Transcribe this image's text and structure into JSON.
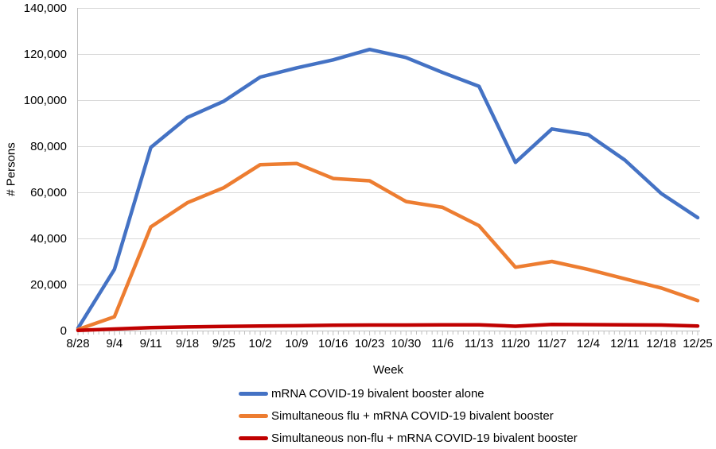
{
  "chart_data": {
    "type": "line",
    "title": "",
    "xlabel": "Week",
    "ylabel": "# Persons",
    "ylim": [
      0,
      140000
    ],
    "yticks": [
      0,
      20000,
      40000,
      60000,
      80000,
      100000,
      120000,
      140000
    ],
    "ytick_labels": [
      "0",
      "20,000",
      "40,000",
      "60,000",
      "80,000",
      "100,000",
      "120,000",
      "140,000"
    ],
    "grid": "horizontal",
    "legend_position": "bottom-left",
    "x": [
      "8/28",
      "9/4",
      "9/11",
      "9/18",
      "9/25",
      "10/2",
      "10/9",
      "10/16",
      "10/23",
      "10/30",
      "11/6",
      "11/13",
      "11/20",
      "11/27",
      "12/4",
      "12/11",
      "12/18",
      "12/25"
    ],
    "series": [
      {
        "name": "mRNA COVID-19 bivalent booster alone",
        "color": "#4472C4",
        "values": [
          1000,
          26500,
          79500,
          92500,
          99500,
          110000,
          114000,
          117500,
          122000,
          118500,
          112000,
          106000,
          73000,
          87500,
          85000,
          74000,
          59500,
          49000
        ]
      },
      {
        "name": "Simultaneous flu + mRNA COVID-19 bivalent booster",
        "color": "#ED7D31",
        "values": [
          500,
          6000,
          45000,
          55500,
          62000,
          72000,
          72500,
          66000,
          65000,
          56000,
          53500,
          45500,
          27500,
          30000,
          26500,
          22500,
          18500,
          13000
        ]
      },
      {
        "name": "Simultaneous non-flu + mRNA COVID-19 bivalent booster",
        "color": "#C00000",
        "values": [
          100,
          700,
          1300,
          1600,
          1800,
          2000,
          2100,
          2300,
          2400,
          2400,
          2500,
          2500,
          1900,
          2700,
          2600,
          2500,
          2400,
          2000
        ]
      }
    ],
    "colors": {
      "grid": "#D9D9D9",
      "axis": "#BFBFBF",
      "tick": "#BFBFBF",
      "text": "#000000"
    }
  }
}
